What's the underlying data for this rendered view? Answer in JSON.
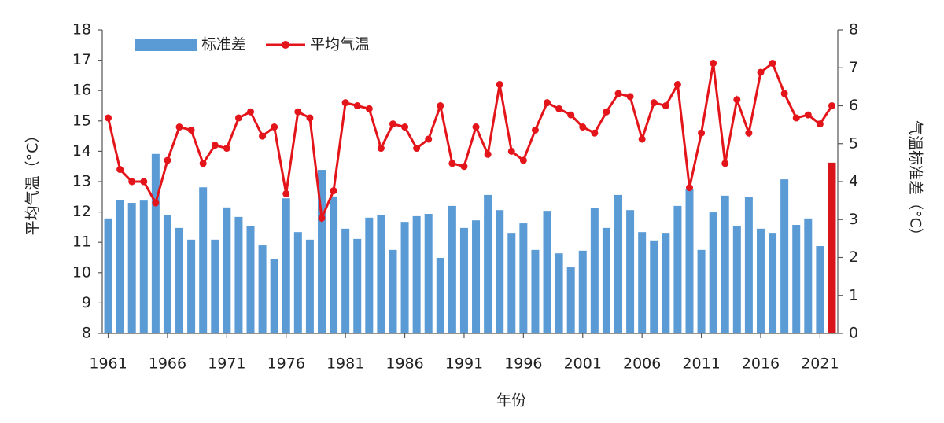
{
  "chart_data": {
    "type": "bar-line",
    "x_label": "年份",
    "y_label": "平均气温（°C）",
    "y2_label": "气温标准差（°C）",
    "x": [
      1961,
      1962,
      1963,
      1964,
      1965,
      1966,
      1967,
      1968,
      1969,
      1970,
      1971,
      1972,
      1973,
      1974,
      1975,
      1976,
      1977,
      1978,
      1979,
      1980,
      1981,
      1982,
      1983,
      1984,
      1985,
      1986,
      1987,
      1988,
      1989,
      1990,
      1991,
      1992,
      1993,
      1994,
      1995,
      1996,
      1997,
      1998,
      1999,
      2000,
      2001,
      2002,
      2003,
      2004,
      2005,
      2006,
      2007,
      2008,
      2009,
      2010,
      2011,
      2012,
      2013,
      2014,
      2015,
      2016,
      2017,
      2018,
      2019,
      2020,
      2021,
      2022
    ],
    "xlim": [
      1960.5,
      2022.5
    ],
    "xticks": [
      1961,
      1966,
      1971,
      1976,
      1981,
      1986,
      1991,
      1996,
      2001,
      2006,
      2011,
      2016,
      2021
    ],
    "ylim": [
      8,
      18
    ],
    "yticks": [
      8,
      9,
      10,
      11,
      12,
      13,
      14,
      15,
      16,
      17,
      18
    ],
    "y2lim": [
      0,
      8
    ],
    "y2ticks": [
      0,
      1,
      2,
      3,
      4,
      5,
      6,
      7,
      8
    ],
    "legend": "upper left",
    "series": [
      {
        "name": "标准差",
        "type": "bar",
        "axis": "y2",
        "color": "#5b9bd5",
        "colors": [
          "#5b9bd5",
          "#5b9bd5",
          "#5b9bd5",
          "#5b9bd5",
          "#5b9bd5",
          "#5b9bd5",
          "#5b9bd5",
          "#5b9bd5",
          "#5b9bd5",
          "#5b9bd5",
          "#5b9bd5",
          "#5b9bd5",
          "#5b9bd5",
          "#5b9bd5",
          "#5b9bd5",
          "#5b9bd5",
          "#5b9bd5",
          "#5b9bd5",
          "#5b9bd5",
          "#5b9bd5",
          "#5b9bd5",
          "#5b9bd5",
          "#5b9bd5",
          "#5b9bd5",
          "#5b9bd5",
          "#5b9bd5",
          "#5b9bd5",
          "#5b9bd5",
          "#5b9bd5",
          "#5b9bd5",
          "#5b9bd5",
          "#5b9bd5",
          "#5b9bd5",
          "#5b9bd5",
          "#5b9bd5",
          "#5b9bd5",
          "#5b9bd5",
          "#5b9bd5",
          "#5b9bd5",
          "#5b9bd5",
          "#5b9bd5",
          "#5b9bd5",
          "#5b9bd5",
          "#5b9bd5",
          "#5b9bd5",
          "#5b9bd5",
          "#5b9bd5",
          "#5b9bd5",
          "#5b9bd5",
          "#5b9bd5",
          "#5b9bd5",
          "#5b9bd5",
          "#5b9bd5",
          "#5b9bd5",
          "#5b9bd5",
          "#5b9bd5",
          "#5b9bd5",
          "#5b9bd5",
          "#5b9bd5",
          "#5b9bd5",
          "#5b9bd5",
          "#d9141b"
        ],
        "values": [
          3.03,
          3.52,
          3.44,
          3.5,
          4.73,
          3.11,
          2.78,
          2.47,
          3.85,
          2.47,
          3.32,
          3.07,
          2.84,
          2.32,
          1.95,
          3.56,
          2.67,
          2.47,
          4.31,
          3.61,
          2.76,
          2.49,
          3.05,
          3.13,
          2.2,
          2.94,
          3.09,
          3.15,
          1.99,
          3.36,
          2.78,
          2.98,
          3.65,
          3.25,
          2.65,
          2.9,
          2.2,
          3.23,
          2.11,
          1.74,
          2.18,
          3.3,
          2.78,
          3.65,
          3.25,
          2.67,
          2.45,
          2.65,
          3.36,
          3.81,
          2.2,
          3.19,
          3.63,
          2.84,
          3.59,
          2.76,
          2.65,
          4.06,
          2.86,
          3.03,
          2.3,
          4.5
        ]
      },
      {
        "name": "平均气温",
        "type": "line",
        "color": "#e3151a",
        "values": [
          15.1,
          13.4,
          13.0,
          13.0,
          12.3,
          13.7,
          14.8,
          14.7,
          13.6,
          14.2,
          14.1,
          15.1,
          15.3,
          14.5,
          14.8,
          12.6,
          15.3,
          15.1,
          11.8,
          12.7,
          15.6,
          15.5,
          15.4,
          14.1,
          14.9,
          14.8,
          14.1,
          14.4,
          15.5,
          13.6,
          13.5,
          14.8,
          13.9,
          16.2,
          14.0,
          13.7,
          14.7,
          15.6,
          15.4,
          15.2,
          14.8,
          14.6,
          15.3,
          15.9,
          15.8,
          14.4,
          15.6,
          15.5,
          16.2,
          12.8,
          14.6,
          16.9,
          13.6,
          15.7,
          14.6,
          16.6,
          16.9,
          15.9,
          15.1,
          15.2,
          14.9,
          15.5
        ]
      }
    ]
  }
}
